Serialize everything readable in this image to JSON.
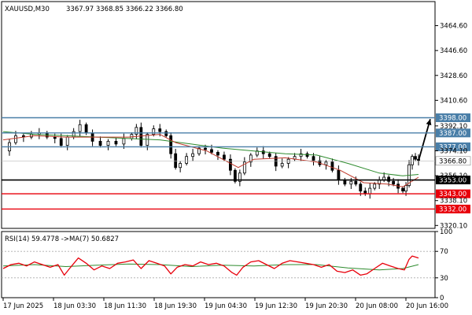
{
  "chart_data": [
    {
      "type": "candlestick",
      "symbol_info": "XAUUSD,M30",
      "ohlc_label": "3367.97 3368.85 3366.22 3366.80",
      "ylim": [
        3318,
        3482
      ],
      "y_ticks": [
        3464.6,
        3446.6,
        3428.6,
        3410.6,
        3392.1,
        3374.1,
        3356.1,
        3338.1,
        3320.1
      ],
      "y_tick_labels": [
        "3464.60",
        "3446.60",
        "3428.60",
        "3410.60",
        "3392.10",
        "3374.10",
        "3356.10",
        "3338.10",
        "3320.10"
      ],
      "x_labels": [
        "17 Jun 2025",
        "18 Jun 03:30",
        "18 Jun 11:30",
        "18 Jun 19:30",
        "19 Jun 04:30",
        "19 Jun 12:30",
        "19 Jun 20:30",
        "20 Jun 08:00",
        "20 Jun 16:00"
      ],
      "current_price": 3366.8,
      "current_price_label": "3366.80",
      "levels": [
        {
          "value": 3398.0,
          "label": "3398.00",
          "color": "#4a7fa8"
        },
        {
          "value": 3387.0,
          "label": "3387.00",
          "color": "#4a7fa8"
        },
        {
          "value": 3377.0,
          "label": "3377.00",
          "color": "#4a7fa8"
        },
        {
          "value": 3353.0,
          "label": "3353.00",
          "color": "#000000"
        },
        {
          "value": 3343.0,
          "label": "3343.00",
          "color": "#e8000b"
        },
        {
          "value": 3332.0,
          "label": "3332.00",
          "color": "#e8000b"
        }
      ],
      "close_path": [
        [
          0,
          3374
        ],
        [
          8,
          3380
        ],
        [
          16,
          3385
        ],
        [
          26,
          3384
        ],
        [
          36,
          3386
        ],
        [
          46,
          3387
        ],
        [
          56,
          3384
        ],
        [
          66,
          3383
        ],
        [
          74,
          3378
        ],
        [
          82,
          3384
        ],
        [
          90,
          3388
        ],
        [
          98,
          3393
        ],
        [
          106,
          3387
        ],
        [
          114,
          3381
        ],
        [
          124,
          3378
        ],
        [
          134,
          3381
        ],
        [
          144,
          3379
        ],
        [
          154,
          3383
        ],
        [
          164,
          3386
        ],
        [
          170,
          3391
        ],
        [
          176,
          3378
        ],
        [
          184,
          3386
        ],
        [
          192,
          3390
        ],
        [
          200,
          3388
        ],
        [
          208,
          3385
        ],
        [
          214,
          3372
        ],
        [
          220,
          3362
        ],
        [
          226,
          3365
        ],
        [
          234,
          3370
        ],
        [
          242,
          3372
        ],
        [
          250,
          3376
        ],
        [
          258,
          3375
        ],
        [
          266,
          3373
        ],
        [
          274,
          3371
        ],
        [
          282,
          3368
        ],
        [
          290,
          3360
        ],
        [
          296,
          3352
        ],
        [
          302,
          3358
        ],
        [
          308,
          3366
        ],
        [
          316,
          3371
        ],
        [
          324,
          3374
        ],
        [
          332,
          3372
        ],
        [
          340,
          3370
        ],
        [
          348,
          3363
        ],
        [
          356,
          3365
        ],
        [
          364,
          3368
        ],
        [
          372,
          3370
        ],
        [
          380,
          3372
        ],
        [
          388,
          3370
        ],
        [
          396,
          3367
        ],
        [
          404,
          3364
        ],
        [
          412,
          3366
        ],
        [
          420,
          3360
        ],
        [
          428,
          3353
        ],
        [
          436,
          3350
        ],
        [
          444,
          3352
        ],
        [
          450,
          3350
        ],
        [
          456,
          3345
        ],
        [
          462,
          3343
        ],
        [
          468,
          3347
        ],
        [
          474,
          3350
        ],
        [
          480,
          3353
        ],
        [
          486,
          3355
        ],
        [
          492,
          3352
        ],
        [
          498,
          3350
        ],
        [
          504,
          3347
        ],
        [
          510,
          3345
        ],
        [
          514,
          3349
        ],
        [
          518,
          3364
        ],
        [
          522,
          3370
        ],
        [
          526,
          3368
        ],
        [
          530,
          3367
        ]
      ],
      "ma_fast": [
        [
          0,
          3382
        ],
        [
          40,
          3385
        ],
        [
          80,
          3384
        ],
        [
          120,
          3384
        ],
        [
          160,
          3384
        ],
        [
          200,
          3386
        ],
        [
          220,
          3380
        ],
        [
          260,
          3374
        ],
        [
          300,
          3362
        ],
        [
          320,
          3368
        ],
        [
          360,
          3369
        ],
        [
          400,
          3366
        ],
        [
          430,
          3360
        ],
        [
          460,
          3351
        ],
        [
          490,
          3350
        ],
        [
          510,
          3348
        ],
        [
          530,
          3355
        ]
      ],
      "ma_slow": [
        [
          0,
          3388
        ],
        [
          40,
          3386
        ],
        [
          80,
          3385
        ],
        [
          120,
          3384
        ],
        [
          160,
          3383
        ],
        [
          200,
          3382
        ],
        [
          240,
          3379
        ],
        [
          280,
          3376
        ],
        [
          320,
          3374
        ],
        [
          360,
          3372
        ],
        [
          400,
          3371
        ],
        [
          440,
          3365
        ],
        [
          480,
          3358
        ],
        [
          510,
          3356
        ],
        [
          530,
          3357
        ]
      ],
      "projection_arrow": [
        [
          530,
          3366.8
        ],
        [
          545,
          3397
        ]
      ]
    },
    {
      "type": "line",
      "indicator_label": "RSI(14) 59.4778  ->MA(7) 50.6827",
      "ylim": [
        0,
        100
      ],
      "y_ticks": [
        100,
        70,
        30,
        0
      ],
      "y_tick_labels": [
        "100",
        "70",
        "30",
        "0"
      ],
      "levels": [
        70,
        30
      ],
      "rsi": [
        [
          0,
          44
        ],
        [
          10,
          50
        ],
        [
          20,
          52
        ],
        [
          30,
          48
        ],
        [
          40,
          54
        ],
        [
          50,
          50
        ],
        [
          60,
          46
        ],
        [
          70,
          50
        ],
        [
          78,
          34
        ],
        [
          86,
          46
        ],
        [
          96,
          60
        ],
        [
          106,
          52
        ],
        [
          116,
          42
        ],
        [
          126,
          48
        ],
        [
          136,
          44
        ],
        [
          146,
          52
        ],
        [
          156,
          54
        ],
        [
          166,
          57
        ],
        [
          176,
          44
        ],
        [
          186,
          56
        ],
        [
          196,
          52
        ],
        [
          206,
          48
        ],
        [
          214,
          36
        ],
        [
          222,
          46
        ],
        [
          232,
          50
        ],
        [
          242,
          48
        ],
        [
          252,
          54
        ],
        [
          262,
          50
        ],
        [
          272,
          52
        ],
        [
          282,
          48
        ],
        [
          292,
          38
        ],
        [
          298,
          34
        ],
        [
          306,
          46
        ],
        [
          316,
          54
        ],
        [
          326,
          56
        ],
        [
          336,
          50
        ],
        [
          346,
          44
        ],
        [
          356,
          52
        ],
        [
          366,
          56
        ],
        [
          376,
          54
        ],
        [
          386,
          52
        ],
        [
          396,
          50
        ],
        [
          406,
          46
        ],
        [
          416,
          50
        ],
        [
          426,
          40
        ],
        [
          436,
          38
        ],
        [
          446,
          42
        ],
        [
          456,
          34
        ],
        [
          464,
          36
        ],
        [
          474,
          44
        ],
        [
          484,
          52
        ],
        [
          494,
          48
        ],
        [
          504,
          44
        ],
        [
          512,
          42
        ],
        [
          518,
          58
        ],
        [
          522,
          63
        ],
        [
          530,
          60
        ]
      ],
      "rsi_ma": [
        [
          0,
          48
        ],
        [
          40,
          50
        ],
        [
          80,
          47
        ],
        [
          120,
          49
        ],
        [
          160,
          51
        ],
        [
          200,
          50
        ],
        [
          240,
          47
        ],
        [
          280,
          49
        ],
        [
          320,
          48
        ],
        [
          360,
          50
        ],
        [
          400,
          50
        ],
        [
          440,
          45
        ],
        [
          480,
          42
        ],
        [
          510,
          44
        ],
        [
          530,
          50
        ]
      ]
    }
  ]
}
